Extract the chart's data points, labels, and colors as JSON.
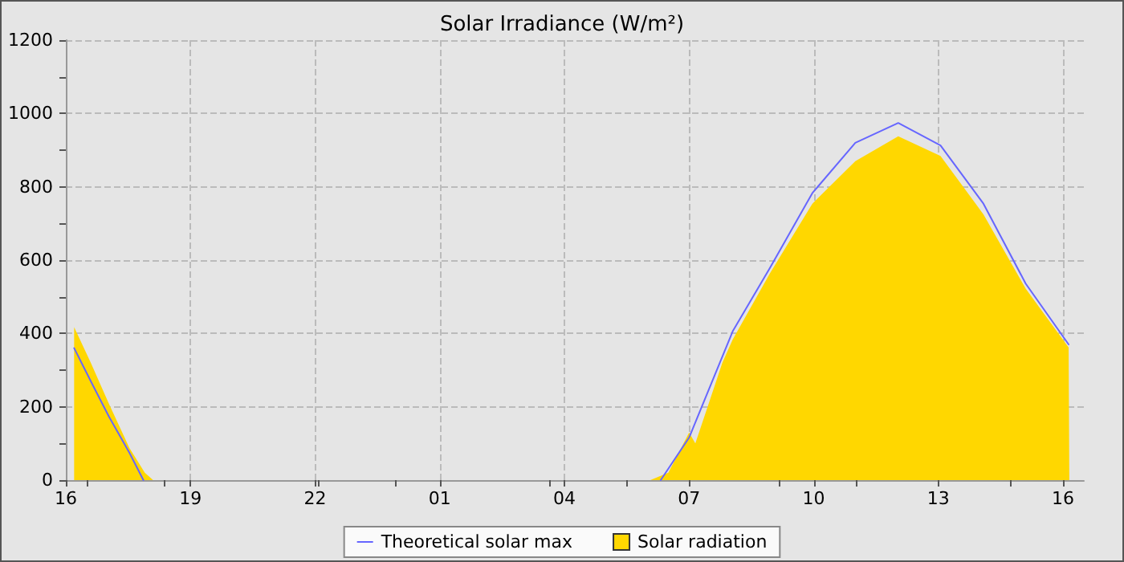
{
  "chart_data": {
    "type": "line",
    "title": "Solar Irradiance (W/m²)",
    "xlim": [
      "--01-01T16:00",
      "--01-02T16:30"
    ],
    "xticks": [
      {
        "value": "--01-01T16:00",
        "label": "16"
      },
      {
        "value": "--01-01T19:00",
        "label": "19"
      },
      {
        "value": "--01-01T22:00",
        "label": "22"
      },
      {
        "value": "--01-02T01:00",
        "label": "01"
      },
      {
        "value": "--01-02T04:00",
        "label": "04"
      },
      {
        "value": "--01-02T07:00",
        "label": "07"
      },
      {
        "value": "--01-02T10:00",
        "label": "10"
      },
      {
        "value": "--01-02T13:00",
        "label": "13"
      },
      {
        "value": "--01-02T16:00",
        "label": "16"
      }
    ],
    "ylim": [
      0,
      1200
    ],
    "yticks": [
      0,
      200,
      400,
      600,
      800,
      1000,
      1200
    ],
    "grid": true,
    "legend": "bottom",
    "marker": "none",
    "line_style": "solid",
    "series": [
      {
        "name": "Solar radiation",
        "type": "area",
        "color": "#ffd700",
        "x": [
          "--01-01T16:12",
          "--01-01T16:36",
          "--01-01T17:02",
          "--01-01T17:32",
          "--01-01T17:54",
          "--01-01T18:06",
          "--01-01T18:12",
          "--01-02T06:00",
          "--01-02T06:04",
          "--01-02T06:30",
          "--01-02T07:00",
          "--01-02T07:09",
          "--01-02T07:48",
          "--01-02T08:03",
          "--01-02T08:57",
          "--01-02T09:58",
          "--01-02T11:00",
          "--01-02T12:02",
          "--01-02T13:03",
          "--01-02T14:05",
          "--01-02T15:06",
          "--01-02T16:08",
          "--01-02T16:09"
        ],
        "values": [
          417,
          320,
          209,
          87,
          20,
          0,
          null,
          null,
          0,
          20,
          130,
          100,
          320,
          384,
          565,
          754,
          870,
          938,
          884,
          725,
          522,
          362,
          0
        ]
      },
      {
        "name": "Theoretical solar max",
        "type": "line",
        "color": "#6666ff",
        "x": [
          "--01-01T16:12",
          "--01-01T16:36",
          "--01-01T17:02",
          "--01-01T17:32",
          "--01-01T17:52",
          "--01-01T17:54",
          "--01-02T06:18",
          "--01-02T06:19",
          "--01-02T07:00",
          "--01-02T08:03",
          "--01-02T08:57",
          "--01-02T09:58",
          "--01-02T11:00",
          "--01-02T12:02",
          "--01-02T13:03",
          "--01-02T14:05",
          "--01-02T15:06",
          "--01-02T16:08"
        ],
        "values": [
          360,
          270,
          174,
          74,
          0,
          null,
          null,
          0,
          116,
          406,
          580,
          783,
          920,
          974,
          913,
          754,
          536,
          370
        ]
      }
    ]
  }
}
